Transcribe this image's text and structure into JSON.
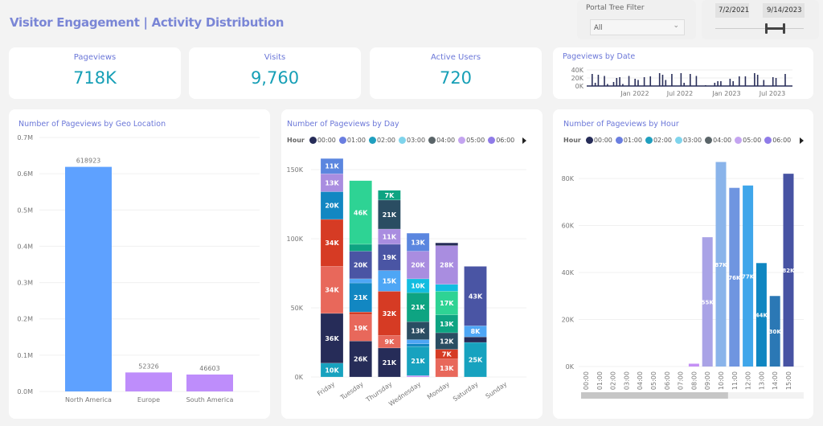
{
  "page": {
    "title": "Visitor Engagement | Activity Distribution"
  },
  "filters": {
    "portal_tree": {
      "label": "Portal Tree Filter",
      "value": "All"
    },
    "date_range": {
      "start": "7/2/2021",
      "end": "9/14/2023",
      "slider_start_fraction": 0.6,
      "slider_end_fraction": 0.85
    }
  },
  "kpis": [
    {
      "label": "Pageviews",
      "value": "718K"
    },
    {
      "label": "Visits",
      "value": "9,760"
    },
    {
      "label": "Active Users",
      "value": "720"
    }
  ],
  "colors": {
    "title": "#7a86d6",
    "kpi_value": "#169fb6",
    "accent_blue": "#5ea1ff",
    "accent_purple": "#be8dfb"
  },
  "chart_data": [
    {
      "id": "pageviews_by_date",
      "type": "bar",
      "title": "Pageviews by Date",
      "yticks": [
        "40K",
        "20K",
        "0K"
      ],
      "ylim": [
        0,
        40000
      ],
      "xticks": [
        "Jan 2022",
        "Jul 2022",
        "Jan 2023",
        "Jul 2023"
      ],
      "series_color": "#2a2f5a",
      "values": [
        30,
        8,
        28,
        0,
        25,
        5,
        0,
        10,
        20,
        22,
        5,
        0,
        25,
        0,
        18,
        15,
        0,
        22,
        0,
        24,
        0,
        0,
        32,
        28,
        15,
        0,
        30,
        0,
        0,
        32,
        8,
        0,
        30,
        0,
        25,
        0,
        0,
        2,
        0,
        0,
        8,
        12,
        12,
        0,
        0,
        18,
        12,
        0,
        24,
        0,
        24,
        0,
        0,
        32,
        28,
        0,
        15,
        0,
        0,
        22,
        20,
        0,
        0,
        30
      ]
    },
    {
      "id": "pageviews_by_geo",
      "type": "bar",
      "title": "Number of Pageviews by Geo Location",
      "categories": [
        "North America",
        "Europe",
        "South America"
      ],
      "values": [
        618923,
        52326,
        46603
      ],
      "data_labels": [
        "618923",
        "52326",
        "46603"
      ],
      "colors": [
        "#5ea1ff",
        "#be8dfb",
        "#be8dfb"
      ],
      "yticks": [
        "0.0M",
        "0.1M",
        "0.2M",
        "0.3M",
        "0.4M",
        "0.5M",
        "0.6M",
        "0.7M"
      ],
      "ylim": [
        0,
        700000
      ],
      "grid": true
    },
    {
      "id": "pageviews_by_day",
      "type": "bar",
      "stacked": true,
      "title": "Number of Pageviews by Day",
      "legend_title": "Hour",
      "legend_position": "top-left",
      "legend": [
        {
          "label": "00:00",
          "color": "#262c58"
        },
        {
          "label": "01:00",
          "color": "#6a7ee0"
        },
        {
          "label": "02:00",
          "color": "#1f9fbf"
        },
        {
          "label": "03:00",
          "color": "#7fd4ec"
        },
        {
          "label": "04:00",
          "color": "#5a6468"
        },
        {
          "label": "05:00",
          "color": "#c4a4f0"
        },
        {
          "label": "06:00",
          "color": "#8f7be8"
        }
      ],
      "categories": [
        "Friday",
        "Tuesday",
        "Thursday",
        "Wednesday",
        "Monday",
        "Saturday",
        "Sunday"
      ],
      "yticks": [
        "0K",
        "50K",
        "100K",
        "150K"
      ],
      "ylim": [
        0,
        150000
      ],
      "stacks": [
        [
          {
            "value": 10,
            "label": "10K",
            "color": "#17a2bf"
          },
          {
            "value": 36,
            "label": "36K",
            "color": "#262c58"
          },
          {
            "value": 34,
            "label": "34K",
            "color": "#e8685b"
          },
          {
            "value": 34,
            "label": "34K",
            "color": "#d63b24"
          },
          {
            "value": 20,
            "label": "20K",
            "color": "#1287c2"
          },
          {
            "value": 13,
            "label": "13K",
            "color": "#a98de0"
          },
          {
            "value": 11,
            "label": "11K",
            "color": "#5b86df"
          }
        ],
        [
          {
            "value": 26,
            "label": "26K",
            "color": "#262c58"
          },
          {
            "value": 19,
            "label": "19K",
            "color": "#e8685b"
          },
          {
            "value": 2,
            "label": "",
            "color": "#d63b24"
          },
          {
            "value": 21,
            "label": "21K",
            "color": "#1287c2"
          },
          {
            "value": 3,
            "label": "",
            "color": "#4ea6f5"
          },
          {
            "value": 20,
            "label": "20K",
            "color": "#4a55a4"
          },
          {
            "value": 5,
            "label": "",
            "color": "#0ea482"
          },
          {
            "value": 46,
            "label": "46K",
            "color": "#2ed394"
          }
        ],
        [
          {
            "value": 21,
            "label": "21K",
            "color": "#262c58"
          },
          {
            "value": 9,
            "label": "9K",
            "color": "#e8685b"
          },
          {
            "value": 32,
            "label": "32K",
            "color": "#d63b24"
          },
          {
            "value": 15,
            "label": "15K",
            "color": "#4ea6f5"
          },
          {
            "value": 19,
            "label": "19K",
            "color": "#4a55a4"
          },
          {
            "value": 11,
            "label": "11K",
            "color": "#a98de0"
          },
          {
            "value": 21,
            "label": "21K",
            "color": "#2a4d62"
          },
          {
            "value": 7,
            "label": "7K",
            "color": "#0ea482"
          }
        ],
        [
          {
            "value": 1,
            "label": "",
            "color": "#c490f5"
          },
          {
            "value": 21,
            "label": "21K",
            "color": "#17a2bf"
          },
          {
            "value": 2,
            "label": "",
            "color": "#1287c2"
          },
          {
            "value": 3,
            "label": "",
            "color": "#4ea6f5"
          },
          {
            "value": 13,
            "label": "13K",
            "color": "#2a4d62"
          },
          {
            "value": 21,
            "label": "21K",
            "color": "#0ea482"
          },
          {
            "value": 10,
            "label": "10K",
            "color": "#12bde0"
          },
          {
            "value": 20,
            "label": "20K",
            "color": "#a98de0"
          },
          {
            "value": 13,
            "label": "13K",
            "color": "#5b86df"
          }
        ],
        [
          {
            "value": 13,
            "label": "13K",
            "color": "#e8685b"
          },
          {
            "value": 7,
            "label": "7K",
            "color": "#d63b24"
          },
          {
            "value": 12,
            "label": "12K",
            "color": "#2a4d62"
          },
          {
            "value": 13,
            "label": "13K",
            "color": "#0ea482"
          },
          {
            "value": 17,
            "label": "17K",
            "color": "#2ed394"
          },
          {
            "value": 5,
            "label": "",
            "color": "#12bde0"
          },
          {
            "value": 28,
            "label": "28K",
            "color": "#a98de0"
          },
          {
            "value": 2,
            "label": "",
            "color": "#262c58"
          }
        ],
        [
          {
            "value": 25,
            "label": "25K",
            "color": "#17a2bf"
          },
          {
            "value": 4,
            "label": "",
            "color": "#262c58"
          },
          {
            "value": 8,
            "label": "8K",
            "color": "#4ea6f5"
          },
          {
            "value": 43,
            "label": "43K",
            "color": "#4a55a4"
          }
        ],
        []
      ]
    },
    {
      "id": "pageviews_by_hour",
      "type": "bar",
      "title": "Number of Pageviews by Hour",
      "legend_title": "Hour",
      "legend_position": "top-left",
      "legend": [
        {
          "label": "00:00",
          "color": "#262c58"
        },
        {
          "label": "01:00",
          "color": "#6a7ee0"
        },
        {
          "label": "02:00",
          "color": "#1f9fbf"
        },
        {
          "label": "03:00",
          "color": "#7fd4ec"
        },
        {
          "label": "04:00",
          "color": "#5a6468"
        },
        {
          "label": "05:00",
          "color": "#c4a4f0"
        },
        {
          "label": "06:00",
          "color": "#8f7be8"
        }
      ],
      "categories": [
        "00:00",
        "01:00",
        "02:00",
        "03:00",
        "04:00",
        "05:00",
        "06:00",
        "07:00",
        "08:00",
        "09:00",
        "10:00",
        "11:00",
        "12:00",
        "13:00",
        "14:00",
        "15:00"
      ],
      "values": [
        0,
        0,
        0,
        0,
        0,
        0,
        0,
        0,
        1.2,
        55,
        87,
        76,
        77,
        44,
        30,
        82
      ],
      "data_labels": [
        "",
        "",
        "",
        "",
        "",
        "",
        "",
        "",
        "",
        "55K",
        "87K",
        "76K",
        "77K",
        "44K",
        "30K",
        "82K"
      ],
      "colors": [
        "#262c58",
        "#6a7ee0",
        "#1f9fbf",
        "#7fd4ec",
        "#5a6468",
        "#c4a4f0",
        "#8f7be8",
        "#8f7be8",
        "#c490f5",
        "#a9a3e6",
        "#8ab4ea",
        "#6f95e0",
        "#3fa6ea",
        "#0f86c1",
        "#2b78b5",
        "#4753a3"
      ],
      "yticks": [
        "0K",
        "20K",
        "40K",
        "60K",
        "80K"
      ],
      "ylim": [
        0,
        80
      ],
      "unit": "K",
      "scrollbar_fraction": 0.66
    }
  ]
}
